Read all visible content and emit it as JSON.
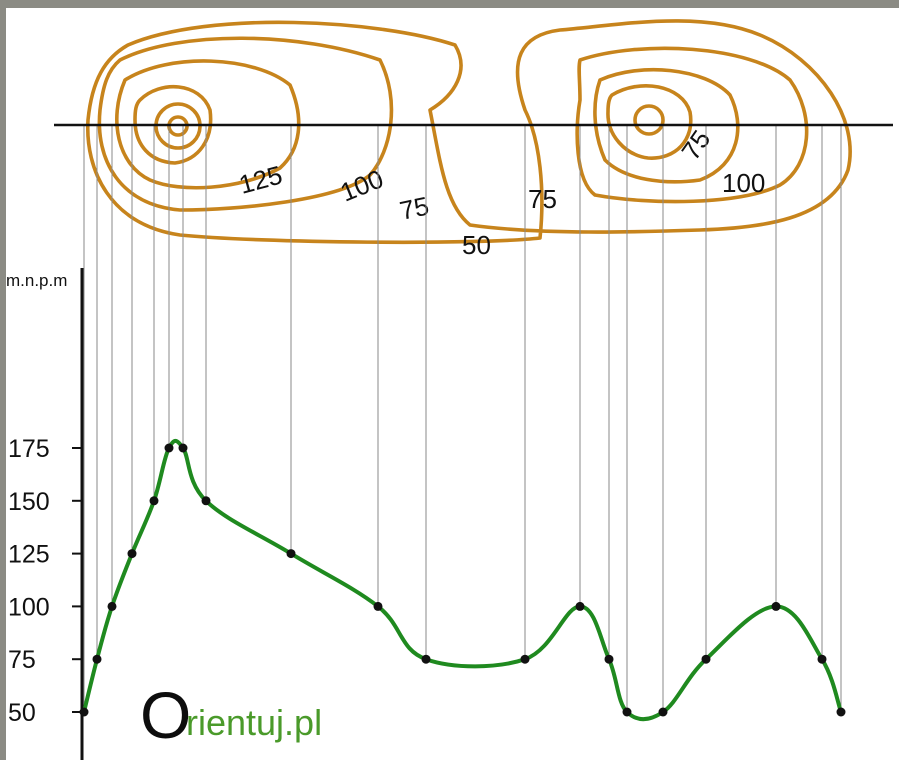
{
  "axis": {
    "unit_label": "m.n.p.m",
    "ticks": [
      175,
      150,
      125,
      100,
      75,
      50
    ]
  },
  "contour_labels": {
    "west_125": "125",
    "west_100": "100",
    "saddle_west_75": "75",
    "saddle_east_75": "75",
    "outer_50": "50",
    "east_75": "75",
    "east_100": "100"
  },
  "profile": {
    "elevations": [
      50,
      75,
      100,
      125,
      150,
      175,
      175,
      150,
      125,
      100,
      75,
      75,
      100,
      75,
      50,
      50,
      75,
      100,
      75,
      50
    ]
  },
  "logo": {
    "letter": "O",
    "rest": "rientuj.pl"
  },
  "colors": {
    "contour": "#c7841c",
    "profile_line": "#1f8a1f",
    "logo_accent": "#4a9a2a"
  }
}
